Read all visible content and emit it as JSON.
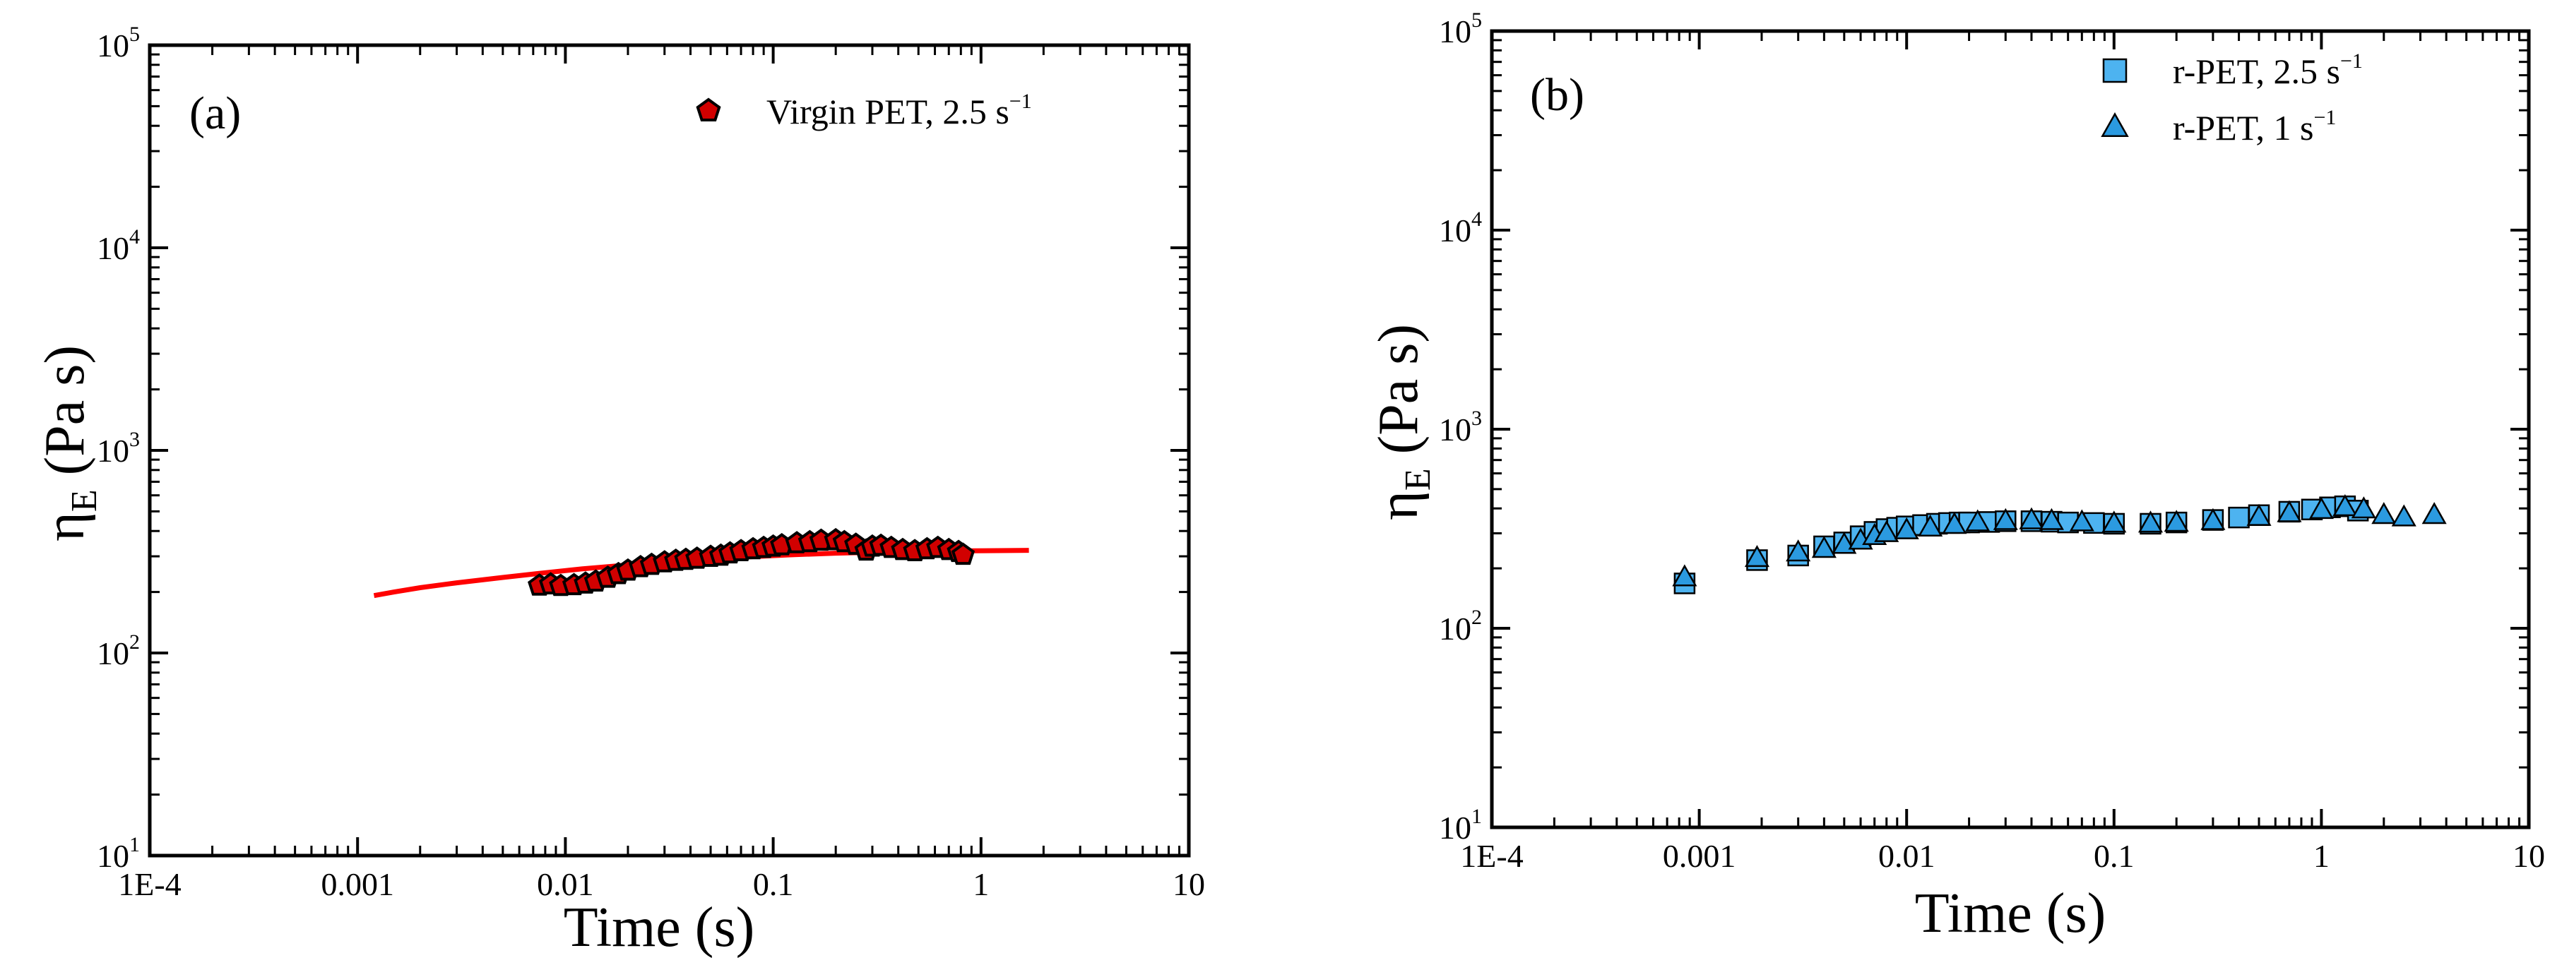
{
  "chart_data": [
    {
      "type": "scatter",
      "panel_label": "(a)",
      "xlabel": "Time (s)",
      "ylabel": {
        "base": "η",
        "subscript": "E",
        "units": "(Pa s)"
      },
      "xscale": "log",
      "yscale": "log",
      "xlim": [
        0.0001,
        10
      ],
      "ylim": [
        10,
        100000
      ],
      "x_tick_labels": [
        "1E-4",
        "0.001",
        "0.01",
        "0.1",
        "1",
        "10"
      ],
      "x_tick_values": [
        0.0001,
        0.001,
        0.01,
        0.1,
        1,
        10
      ],
      "y_tick_labels": [
        {
          "base": "10",
          "exp": "1",
          "value": 10
        },
        {
          "base": "10",
          "exp": "2",
          "value": 100
        },
        {
          "base": "10",
          "exp": "3",
          "value": 1000
        },
        {
          "base": "10",
          "exp": "4",
          "value": 10000
        },
        {
          "base": "10",
          "exp": "5",
          "value": 100000
        }
      ],
      "legend_position": "top-right",
      "series": [
        {
          "name": "Virgin PET, 2.5 s",
          "name_sup": "−1",
          "marker": "pentagon",
          "color": "#d10000",
          "edge_color": "#000000",
          "points": [
            [
              0.0075,
              215
            ],
            [
              0.0085,
              218
            ],
            [
              0.0095,
              214
            ],
            [
              0.011,
              216
            ],
            [
              0.0125,
              220
            ],
            [
              0.014,
              225
            ],
            [
              0.016,
              235
            ],
            [
              0.018,
              245
            ],
            [
              0.02,
              255
            ],
            [
              0.023,
              265
            ],
            [
              0.026,
              272
            ],
            [
              0.03,
              280
            ],
            [
              0.034,
              285
            ],
            [
              0.038,
              288
            ],
            [
              0.043,
              292
            ],
            [
              0.05,
              298
            ],
            [
              0.056,
              302
            ],
            [
              0.062,
              310
            ],
            [
              0.07,
              318
            ],
            [
              0.08,
              325
            ],
            [
              0.09,
              330
            ],
            [
              0.1,
              335
            ],
            [
              0.11,
              340
            ],
            [
              0.13,
              348
            ],
            [
              0.15,
              352
            ],
            [
              0.17,
              358
            ],
            [
              0.2,
              360
            ],
            [
              0.22,
              352
            ],
            [
              0.25,
              342
            ],
            [
              0.28,
              320
            ],
            [
              0.3,
              335
            ],
            [
              0.33,
              338
            ],
            [
              0.37,
              330
            ],
            [
              0.42,
              322
            ],
            [
              0.48,
              318
            ],
            [
              0.55,
              325
            ],
            [
              0.62,
              330
            ],
            [
              0.7,
              322
            ],
            [
              0.78,
              315
            ],
            [
              0.82,
              305
            ]
          ]
        },
        {
          "name": "fit (red line)",
          "type": "line",
          "color": "#ff0000",
          "points": [
            [
              0.0012,
              192
            ],
            [
              0.0015,
              200
            ],
            [
              0.002,
              210
            ],
            [
              0.003,
              222
            ],
            [
              0.005,
              236
            ],
            [
              0.008,
              249
            ],
            [
              0.012,
              260
            ],
            [
              0.02,
              272
            ],
            [
              0.03,
              281
            ],
            [
              0.05,
              291
            ],
            [
              0.08,
              299
            ],
            [
              0.12,
              305
            ],
            [
              0.2,
              311
            ],
            [
              0.3,
              314
            ],
            [
              0.5,
              317
            ],
            [
              0.8,
              319
            ],
            [
              1.2,
              320
            ],
            [
              1.7,
              321
            ]
          ]
        }
      ]
    },
    {
      "type": "scatter",
      "panel_label": "(b)",
      "xlabel": "Time (s)",
      "ylabel": {
        "base": "η",
        "subscript": "E",
        "units": "(Pa s)"
      },
      "xscale": "log",
      "yscale": "log",
      "xlim": [
        0.0001,
        10
      ],
      "ylim": [
        10,
        100000
      ],
      "x_tick_labels": [
        "1E-4",
        "0.001",
        "0.01",
        "0.1",
        "1",
        "10"
      ],
      "x_tick_values": [
        0.0001,
        0.001,
        0.01,
        0.1,
        1,
        10
      ],
      "y_tick_labels": [
        {
          "base": "10",
          "exp": "1",
          "value": 10
        },
        {
          "base": "10",
          "exp": "2",
          "value": 100
        },
        {
          "base": "10",
          "exp": "3",
          "value": 1000
        },
        {
          "base": "10",
          "exp": "4",
          "value": 10000
        },
        {
          "base": "10",
          "exp": "5",
          "value": 100000
        }
      ],
      "legend_position": "top-right",
      "series": [
        {
          "name": "r-PET, 2.5 s",
          "name_sup": "−1",
          "marker": "square",
          "color": "#4db3f0",
          "edge_color": "#000000",
          "points": [
            [
              0.00085,
              168
            ],
            [
              0.0019,
              220
            ],
            [
              0.003,
              232
            ],
            [
              0.004,
              258
            ],
            [
              0.005,
              270
            ],
            [
              0.006,
              290
            ],
            [
              0.007,
              305
            ],
            [
              0.008,
              315
            ],
            [
              0.009,
              320
            ],
            [
              0.01,
              325
            ],
            [
              0.012,
              330
            ],
            [
              0.014,
              335
            ],
            [
              0.016,
              338
            ],
            [
              0.018,
              340
            ],
            [
              0.02,
              340
            ],
            [
              0.025,
              342
            ],
            [
              0.03,
              345
            ],
            [
              0.04,
              345
            ],
            [
              0.05,
              343
            ],
            [
              0.06,
              340
            ],
            [
              0.08,
              338
            ],
            [
              0.1,
              335
            ],
            [
              0.15,
              335
            ],
            [
              0.2,
              340
            ],
            [
              0.3,
              350
            ],
            [
              0.4,
              360
            ],
            [
              0.5,
              370
            ],
            [
              0.7,
              385
            ],
            [
              0.9,
              395
            ],
            [
              1.1,
              405
            ],
            [
              1.3,
              410
            ],
            [
              1.5,
              390
            ]
          ]
        },
        {
          "name": "r-PET, 1 s",
          "name_sup": "−1",
          "marker": "triangle",
          "color": "#2b9ae0",
          "edge_color": "#000000",
          "points": [
            [
              0.00085,
              180
            ],
            [
              0.0019,
              225
            ],
            [
              0.003,
              240
            ],
            [
              0.004,
              250
            ],
            [
              0.005,
              262
            ],
            [
              0.006,
              275
            ],
            [
              0.007,
              290
            ],
            [
              0.008,
              300
            ],
            [
              0.01,
              310
            ],
            [
              0.013,
              320
            ],
            [
              0.017,
              330
            ],
            [
              0.022,
              340
            ],
            [
              0.03,
              345
            ],
            [
              0.04,
              348
            ],
            [
              0.05,
              345
            ],
            [
              0.07,
              340
            ],
            [
              0.1,
              335
            ],
            [
              0.15,
              335
            ],
            [
              0.2,
              338
            ],
            [
              0.3,
              345
            ],
            [
              0.5,
              362
            ],
            [
              0.7,
              378
            ],
            [
              1,
              392
            ],
            [
              1.3,
              405
            ],
            [
              1.6,
              395
            ],
            [
              2,
              370
            ],
            [
              2.5,
              360
            ],
            [
              3.5,
              370
            ]
          ]
        }
      ]
    }
  ]
}
